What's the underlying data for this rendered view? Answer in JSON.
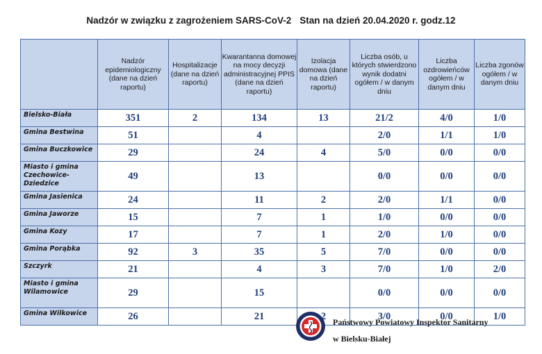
{
  "title": {
    "main": "Nadzór w związku z zagrożeniem SARS-CoV-2",
    "status": "Stan na dzień 20.04.2020 r. godz.12"
  },
  "table": {
    "columns": [
      "",
      "Nadzór epidemiologiczny (dane na dzień raportu)",
      "Hospitalizacje (dane na dzień raportu)",
      "Kwarantanna domowej na mocy decyzji administracyjnej PPIS (dane na dzień raportu)",
      "Izolacja domowa (dane na dzień raportu)",
      "Liczba osób, u których stwierdzono wynik dodatni ogółem / w danym dniu",
      "Liczba ozdrowieńców ogółem / w danym dniu",
      "Liczba zgonów ogółem / w danym dniu"
    ],
    "rows": [
      {
        "name": "Bielsko-Biała",
        "values": [
          "351",
          "2",
          "134",
          "13",
          "21/2",
          "4/0",
          "1/0"
        ]
      },
      {
        "name": "Gmina Bestwina",
        "values": [
          "51",
          "",
          "4",
          "",
          "2/0",
          "1/1",
          "1/0"
        ]
      },
      {
        "name": "Gmina Buczkowice",
        "values": [
          "29",
          "",
          "24",
          "4",
          "5/0",
          "0/0",
          "0/0"
        ]
      },
      {
        "name": "Miasto i gmina Czechowice-Dziedzice",
        "values": [
          "49",
          "",
          "13",
          "",
          "0/0",
          "0/0",
          "0/0"
        ],
        "tall": true
      },
      {
        "name": "Gmina Jasienica",
        "values": [
          "24",
          "",
          "11",
          "2",
          "2/0",
          "1/1",
          "0/0"
        ]
      },
      {
        "name": "Gmina Jaworze",
        "values": [
          "15",
          "",
          "7",
          "1",
          "1/0",
          "0/0",
          "0/0"
        ]
      },
      {
        "name": "Gmina Kozy",
        "values": [
          "17",
          "",
          "7",
          "1",
          "2/0",
          "1/0",
          "0/0"
        ]
      },
      {
        "name": "Gmina Porąbka",
        "values": [
          "92",
          "3",
          "35",
          "5",
          "7/0",
          "0/0",
          "0/0"
        ]
      },
      {
        "name": "Szczyrk",
        "values": [
          "21",
          "",
          "4",
          "3",
          "7/0",
          "1/0",
          "2/0"
        ]
      },
      {
        "name": "Miasto i gmina Wilamowice",
        "values": [
          "29",
          "",
          "15",
          "",
          "0/0",
          "0/0",
          "0/0"
        ],
        "tall": true
      },
      {
        "name": "Gmina Wilkowice",
        "values": [
          "26",
          "",
          "21",
          "2",
          "3/0",
          "0/0",
          "1/0"
        ]
      }
    ]
  },
  "footer": {
    "issuer_line1": "Państwowy Powiatowy Inspektor Sanitarny",
    "issuer_line2": "w Bielsku-Białej",
    "seal_icon": "sanepid-seal-icon",
    "colors": {
      "seal_red": "#d42a2a",
      "seal_navy": "#1f2f66",
      "header_fill": "#c6d4ec",
      "value_text": "#1f3e7a"
    }
  }
}
